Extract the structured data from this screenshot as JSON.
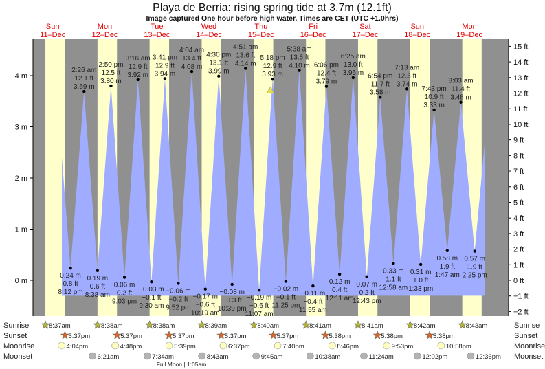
{
  "chart_data": {
    "type": "area",
    "title": "Playa de Berria: rising  spring tide at 3.7m (12.1ft)",
    "subtitle": "Image captured One hour before high water. Times are CET (UTC +1.0hrs)",
    "days": [
      {
        "name": "Sun",
        "date": "11–Dec"
      },
      {
        "name": "Mon",
        "date": "12–Dec"
      },
      {
        "name": "Tue",
        "date": "13–Dec"
      },
      {
        "name": "Wed",
        "date": "14–Dec"
      },
      {
        "name": "Thu",
        "date": "15–Dec"
      },
      {
        "name": "Fri",
        "date": "16–Dec"
      },
      {
        "name": "Sat",
        "date": "17–Dec"
      },
      {
        "name": "Sun",
        "date": "18–Dec"
      },
      {
        "name": "Mon",
        "date": "19–Dec"
      }
    ],
    "ylim_m": [
      -0.55,
      4.7
    ],
    "yticks_m": [
      "0 m",
      "1 m",
      "2 m",
      "3 m",
      "4 m"
    ],
    "yticks_ft": [
      "−2 ft",
      "−1 ft",
      "0 ft",
      "1 ft",
      "2 ft",
      "3 ft",
      "4 ft",
      "5 ft",
      "6 ft",
      "7 ft",
      "8 ft",
      "9 ft",
      "10 ft",
      "11 ft",
      "12 ft",
      "13 ft",
      "14 ft",
      "15 ft"
    ],
    "extremes": [
      {
        "day": 0,
        "time": "8:12 pm",
        "m": 0.24,
        "ft": "0.8 ft",
        "mtxt": "0.24 m",
        "type": "low"
      },
      {
        "day": 1,
        "time": "2:26 am",
        "m": 3.69,
        "ft": "12.1 ft",
        "mtxt": "3.69 m",
        "type": "high"
      },
      {
        "day": 1,
        "time": "8:38 am",
        "m": 0.19,
        "ft": "0.6 ft",
        "mtxt": "0.19 m",
        "type": "low"
      },
      {
        "day": 1,
        "time": "2:50 pm",
        "m": 3.8,
        "ft": "12.5 ft",
        "mtxt": "3.80 m",
        "type": "high"
      },
      {
        "day": 1,
        "time": "9:03 pm",
        "m": 0.06,
        "ft": "0.2 ft",
        "mtxt": "0.06 m",
        "type": "low"
      },
      {
        "day": 2,
        "time": "3:16 am",
        "m": 3.92,
        "ft": "12.9 ft",
        "mtxt": "3.92 m",
        "type": "high"
      },
      {
        "day": 2,
        "time": "9:30 am",
        "m": -0.03,
        "ft": "−0.1 ft",
        "mtxt": "−0.03 m",
        "type": "low"
      },
      {
        "day": 2,
        "time": "3:41 pm",
        "m": 3.94,
        "ft": "12.9 ft",
        "mtxt": "3.94 m",
        "type": "high"
      },
      {
        "day": 2,
        "time": "9:52 pm",
        "m": -0.06,
        "ft": "−0.2 ft",
        "mtxt": "−0.06 m",
        "type": "low"
      },
      {
        "day": 3,
        "time": "4:04 am",
        "m": 4.08,
        "ft": "13.4 ft",
        "mtxt": "4.08 m",
        "type": "high"
      },
      {
        "day": 3,
        "time": "10:19 am",
        "m": -0.17,
        "ft": "−0.6 ft",
        "mtxt": "−0.17 m",
        "type": "low"
      },
      {
        "day": 3,
        "time": "4:30 pm",
        "m": 3.99,
        "ft": "13.1 ft",
        "mtxt": "3.99 m",
        "type": "high"
      },
      {
        "day": 3,
        "time": "10:39 pm",
        "m": -0.08,
        "ft": "−0.3 ft",
        "mtxt": "−0.08 m",
        "type": "low"
      },
      {
        "day": 4,
        "time": "4:51 am",
        "m": 4.14,
        "ft": "13.6 ft",
        "mtxt": "4.14 m",
        "type": "high"
      },
      {
        "day": 4,
        "time": "11:07 am",
        "m": -0.19,
        "ft": "−0.6 ft",
        "mtxt": "−0.19 m",
        "type": "low"
      },
      {
        "day": 4,
        "time": "5:18 pm",
        "m": 3.93,
        "ft": "12.9 ft",
        "mtxt": "3.93 m",
        "type": "high"
      },
      {
        "day": 4,
        "time": "11:25 pm",
        "m": -0.02,
        "ft": "−0.1 ft",
        "mtxt": "−0.02 m",
        "type": "low"
      },
      {
        "day": 5,
        "time": "5:38 am",
        "m": 4.1,
        "ft": "13.5 ft",
        "mtxt": "4.10 m",
        "type": "high"
      },
      {
        "day": 5,
        "time": "11:55 am",
        "m": -0.11,
        "ft": "−0.4 ft",
        "mtxt": "−0.11 m",
        "type": "low"
      },
      {
        "day": 5,
        "time": "6:06 pm",
        "m": 3.79,
        "ft": "12.4 ft",
        "mtxt": "3.79 m",
        "type": "high"
      },
      {
        "day": 6,
        "time": "12:11 am",
        "m": 0.12,
        "ft": "0.4 ft",
        "mtxt": "0.12 m",
        "type": "low"
      },
      {
        "day": 6,
        "time": "6:25 am",
        "m": 3.96,
        "ft": "13.0 ft",
        "mtxt": "3.96 m",
        "type": "high"
      },
      {
        "day": 6,
        "time": "12:43 pm",
        "m": 0.07,
        "ft": "0.2 ft",
        "mtxt": "0.07 m",
        "type": "low"
      },
      {
        "day": 6,
        "time": "6:54 pm",
        "m": 3.58,
        "ft": "11.7 ft",
        "mtxt": "3.58 m",
        "type": "high"
      },
      {
        "day": 7,
        "time": "12:58 am",
        "m": 0.33,
        "ft": "1.1 ft",
        "mtxt": "0.33 m",
        "type": "low"
      },
      {
        "day": 7,
        "time": "7:13 am",
        "m": 3.74,
        "ft": "12.3 ft",
        "mtxt": "3.74 m",
        "type": "high"
      },
      {
        "day": 7,
        "time": "1:33 pm",
        "m": 0.31,
        "ft": "1.0 ft",
        "mtxt": "0.31 m",
        "type": "low"
      },
      {
        "day": 7,
        "time": "7:43 pm",
        "m": 3.33,
        "ft": "10.9 ft",
        "mtxt": "3.33 m",
        "type": "high"
      },
      {
        "day": 8,
        "time": "1:47 am",
        "m": 0.58,
        "ft": "1.9 ft",
        "mtxt": "0.58 m",
        "type": "low"
      },
      {
        "day": 8,
        "time": "8:03 am",
        "m": 3.48,
        "ft": "11.4 ft",
        "mtxt": "3.48 m",
        "type": "high"
      },
      {
        "day": 8,
        "time": "2:25 pm",
        "m": 0.57,
        "ft": "1.9 ft",
        "mtxt": "0.57 m",
        "type": "low"
      }
    ],
    "current": {
      "m": 3.7
    },
    "rows": {
      "sunrise_label": "Sunrise",
      "sunset_label": "Sunset",
      "moonrise_label": "Moonrise",
      "moonset_label": "Moonset",
      "sunrise": [
        "8:37am",
        "8:38am",
        "8:38am",
        "8:39am",
        "8:40am",
        "8:41am",
        "8:41am",
        "8:42am",
        "8:43am"
      ],
      "sunset": [
        "5:37pm",
        "5:37pm",
        "5:37pm",
        "5:37pm",
        "5:37pm",
        "5:38pm",
        "5:38pm",
        "5:38pm"
      ],
      "moonrise": [
        "4:04pm",
        "4:48pm",
        "5:39pm",
        "6:37pm",
        "7:40pm",
        "8:46pm",
        "9:53pm",
        "10:58pm"
      ],
      "moonset": [
        "6:21am",
        "7:34am",
        "8:43am",
        "9:45am",
        "10:38am",
        "11:24am",
        "12:02pm",
        "12:36pm"
      ],
      "moon_phase": "Full Moon | 1:05am"
    },
    "colors": {
      "water": "#a0acff",
      "night": "#909090",
      "day": "#ffffcc",
      "daylabel": "#e00000",
      "sunrise": "#b4b43c",
      "sunset": "#dc6428",
      "moon": "#ffffc0",
      "moonset": "#b4b4b4"
    }
  }
}
